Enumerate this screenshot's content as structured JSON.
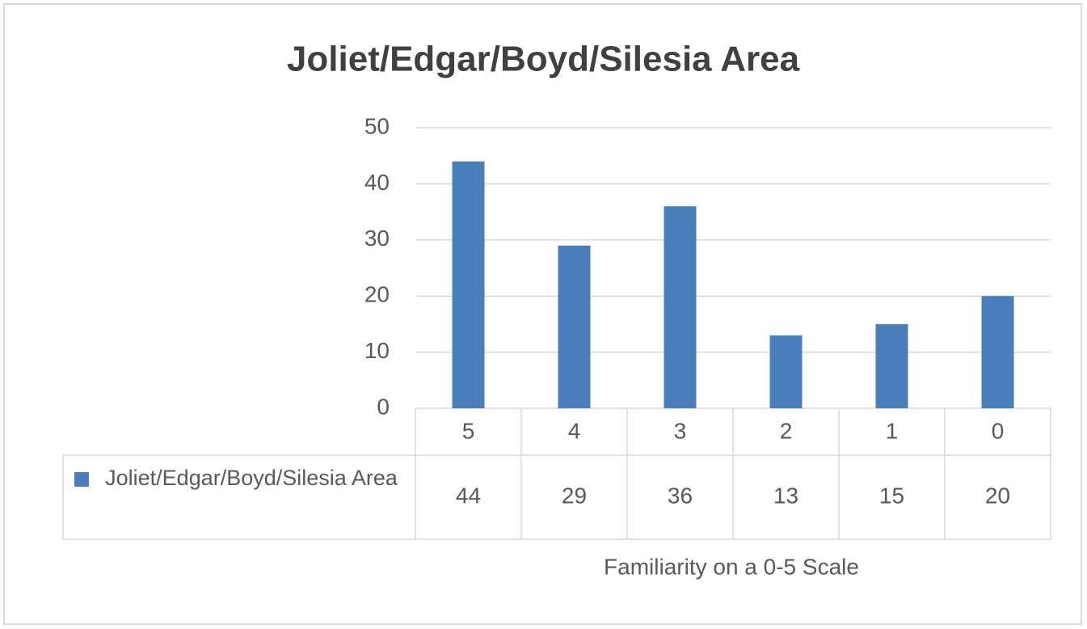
{
  "chart_data": {
    "type": "bar",
    "title": "Joliet/Edgar/Boyd/Silesia Area",
    "categories": [
      "5",
      "4",
      "3",
      "2",
      "1",
      "0"
    ],
    "series": [
      {
        "name": "Joliet/Edgar/Boyd/Silesia Area",
        "color": "#4a7ebb",
        "values": [
          44,
          29,
          36,
          13,
          15,
          20
        ]
      }
    ],
    "xlabel": "Familiarity on a 0-5 Scale",
    "ylim": [
      0,
      50
    ],
    "yticks": [
      0,
      10,
      20,
      30,
      40,
      50
    ],
    "grid": true
  }
}
